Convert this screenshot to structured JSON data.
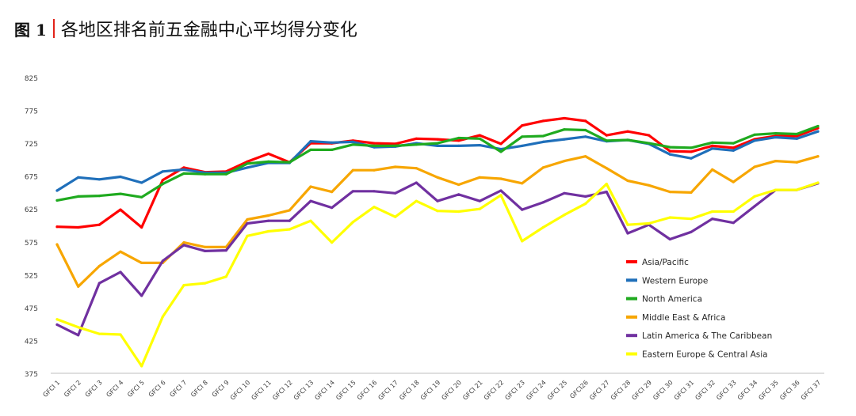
{
  "page": {
    "figure_label": "图 1",
    "title": "各地区排名前五金融中心平均得分变化"
  },
  "chart_data": {
    "type": "line",
    "title": "各地区排名前五金融中心平均得分变化",
    "ylim": [
      375,
      825
    ],
    "yticks": [
      375,
      425,
      475,
      525,
      575,
      625,
      675,
      725,
      775,
      825
    ],
    "grid": false,
    "legend_position": "right, lower half",
    "categories": [
      "GFCI 1",
      "GFCI 2",
      "GFCI 3",
      "GFCI 4",
      "GFCI 5",
      "GFCI 6",
      "GFCI 7",
      "GFCI 8",
      "GFCI 9",
      "GFCI 10",
      "GFCI 11",
      "GFCI 12",
      "GFCI 13",
      "GFCI 14",
      "GFCI 15",
      "GFCI 16",
      "GFCI 17",
      "GFCI 18",
      "GFCI 19",
      "GFCI 20",
      "GFCI 21",
      "GFCI 22",
      "GFCI 23",
      "GFCI 24",
      "GFCI 25",
      "GFCI26",
      "GFCI 27",
      "GFCI 28",
      "GFCI 29",
      "GFCI 30",
      "GFCI 31",
      "GFCI 32",
      "GFCI 33",
      "GFCI 34",
      "GFCI 35",
      "GFCI 36",
      "GFCI 37"
    ],
    "series": [
      {
        "name": "Asia/Pacific",
        "color": "#ff0000",
        "values": [
          598,
          597,
          601,
          624,
          597,
          669,
          688,
          681,
          682,
          697,
          709,
          696,
          725,
          725,
          729,
          725,
          724,
          732,
          731,
          729,
          737,
          724,
          752,
          759,
          763,
          759,
          737,
          743,
          737,
          713,
          712,
          721,
          718,
          731,
          736,
          736,
          748
        ]
      },
      {
        "name": "Western Europe",
        "color": "#1f6fba",
        "values": [
          653,
          673,
          670,
          674,
          665,
          682,
          685,
          680,
          680,
          688,
          695,
          695,
          728,
          726,
          727,
          719,
          720,
          725,
          721,
          721,
          722,
          716,
          721,
          727,
          731,
          735,
          728,
          730,
          724,
          708,
          702,
          717,
          714,
          729,
          734,
          732,
          743
        ]
      },
      {
        "name": "North America",
        "color": "#1faa1f",
        "values": [
          638,
          644,
          645,
          648,
          643,
          663,
          679,
          678,
          678,
          694,
          697,
          696,
          715,
          715,
          723,
          721,
          721,
          723,
          725,
          733,
          732,
          712,
          735,
          736,
          746,
          745,
          729,
          730,
          725,
          719,
          718,
          726,
          725,
          738,
          740,
          739,
          751
        ]
      },
      {
        "name": "Middle East & Africa",
        "color": "#f7a600",
        "values": [
          571,
          507,
          538,
          560,
          543,
          543,
          574,
          567,
          567,
          609,
          615,
          623,
          659,
          651,
          684,
          684,
          689,
          687,
          673,
          662,
          673,
          671,
          664,
          688,
          698,
          705,
          687,
          668,
          661,
          651,
          650,
          685,
          666,
          689,
          698,
          696,
          705
        ]
      },
      {
        "name": "Latin America & The Caribbean",
        "color": "#7030a0",
        "values": [
          449,
          433,
          512,
          529,
          493,
          546,
          570,
          561,
          562,
          603,
          607,
          607,
          637,
          627,
          652,
          652,
          649,
          665,
          637,
          647,
          637,
          653,
          624,
          635,
          649,
          644,
          651,
          588,
          601,
          579,
          590,
          610,
          604,
          629,
          654,
          654,
          664
        ]
      },
      {
        "name": "Eastern Europe & Central Asia",
        "color": "#ffff00",
        "values": [
          457,
          445,
          435,
          434,
          386,
          461,
          509,
          512,
          522,
          584,
          591,
          594,
          607,
          574,
          605,
          628,
          613,
          637,
          622,
          621,
          625,
          646,
          576,
          597,
          616,
          633,
          663,
          601,
          603,
          612,
          610,
          621,
          621,
          644,
          654,
          654,
          665
        ]
      }
    ]
  }
}
